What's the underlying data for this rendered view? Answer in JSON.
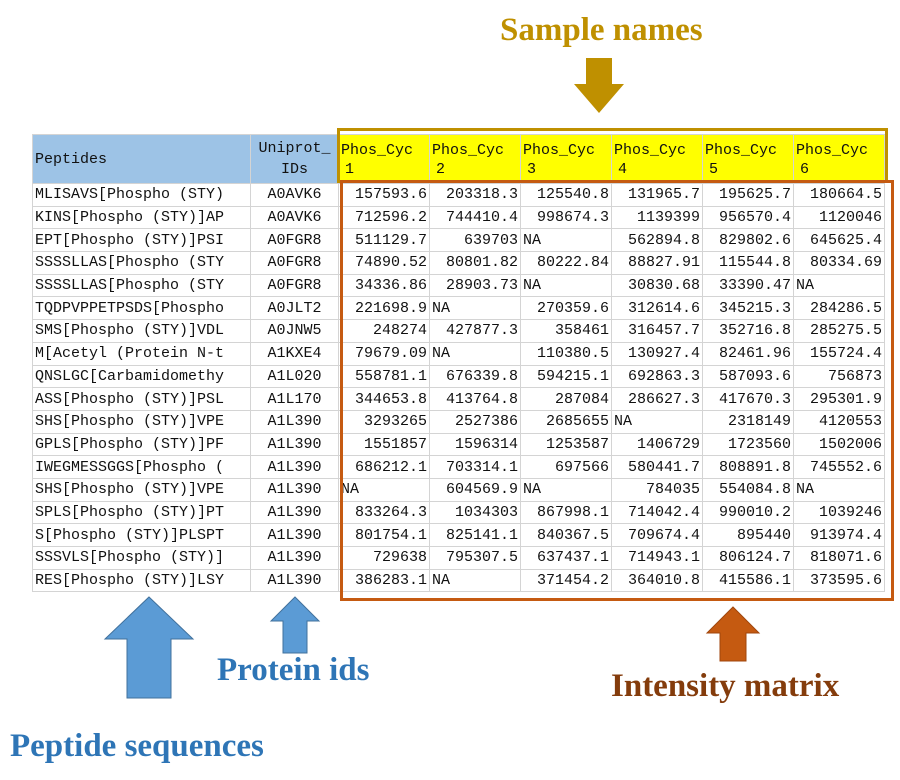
{
  "annotations": {
    "sample_names": "Sample names",
    "protein_ids": "Protein ids",
    "peptide_sequences": "Peptide sequences",
    "intensity_matrix": "Intensity matrix"
  },
  "colors": {
    "sample_names": "#bf9000",
    "protein_ids": "#2e75b6",
    "peptide_sequences": "#2e75b6",
    "intensity_matrix": "#c55a11",
    "header_blue": "#9dc3e6",
    "header_yellow": "#ffff00"
  },
  "icons": [
    "arrow-down-icon",
    "arrow-up-icon"
  ],
  "table": {
    "headers": {
      "peptides": "Peptides",
      "uniprot_line1": "Uniprot_",
      "uniprot_line2": "IDs",
      "samples": [
        {
          "line1": "Phos_Cyc",
          "line2": "1"
        },
        {
          "line1": "Phos_Cyc",
          "line2": "2"
        },
        {
          "line1": "Phos_Cyc",
          "line2": "3"
        },
        {
          "line1": "Phos_Cyc",
          "line2": "4"
        },
        {
          "line1": "Phos_Cyc",
          "line2": "5"
        },
        {
          "line1": "Phos_Cyc",
          "line2": "6"
        }
      ]
    },
    "rows": [
      {
        "peptide": "MLISAVS[Phospho (STY)",
        "id": "A0AVK6",
        "values": [
          "157593.6",
          "203318.3",
          "125540.8",
          "131965.7",
          "195625.7",
          "180664.5"
        ]
      },
      {
        "peptide": "KINS[Phospho (STY)]AP",
        "id": "A0AVK6",
        "values": [
          "712596.2",
          "744410.4",
          "998674.3",
          "1139399",
          "956570.4",
          "1120046"
        ]
      },
      {
        "peptide": "EPT[Phospho (STY)]PSI",
        "id": "A0FGR8",
        "values": [
          "511129.7",
          "639703",
          "NA",
          "562894.8",
          "829802.6",
          "645625.4"
        ]
      },
      {
        "peptide": "SSSSLLAS[Phospho (STY",
        "id": "A0FGR8",
        "values": [
          "74890.52",
          "80801.82",
          "80222.84",
          "88827.91",
          "115544.8",
          "80334.69"
        ]
      },
      {
        "peptide": "SSSSLLAS[Phospho (STY",
        "id": "A0FGR8",
        "values": [
          "34336.86",
          "28903.73",
          "NA",
          "30830.68",
          "33390.47",
          "NA"
        ]
      },
      {
        "peptide": "TQDPVPPETPSDS[Phospho",
        "id": "A0JLT2",
        "values": [
          "221698.9",
          "NA",
          "270359.6",
          "312614.6",
          "345215.3",
          "284286.5"
        ]
      },
      {
        "peptide": "SMS[Phospho (STY)]VDL",
        "id": "A0JNW5",
        "values": [
          "248274",
          "427877.3",
          "358461",
          "316457.7",
          "352716.8",
          "285275.5"
        ]
      },
      {
        "peptide": "M[Acetyl (Protein N-t",
        "id": "A1KXE4",
        "values": [
          "79679.09",
          "NA",
          "110380.5",
          "130927.4",
          "82461.96",
          "155724.4"
        ]
      },
      {
        "peptide": "QNSLGC[Carbamidomethy",
        "id": "A1L020",
        "values": [
          "558781.1",
          "676339.8",
          "594215.1",
          "692863.3",
          "587093.6",
          "756873"
        ]
      },
      {
        "peptide": "ASS[Phospho (STY)]PSL",
        "id": "A1L170",
        "values": [
          "344653.8",
          "413764.8",
          "287084",
          "286627.3",
          "417670.3",
          "295301.9"
        ]
      },
      {
        "peptide": "SHS[Phospho (STY)]VPE",
        "id": "A1L390",
        "values": [
          "3293265",
          "2527386",
          "2685655",
          "NA",
          "2318149",
          "4120553"
        ]
      },
      {
        "peptide": "GPLS[Phospho (STY)]PF",
        "id": "A1L390",
        "values": [
          "1551857",
          "1596314",
          "1253587",
          "1406729",
          "1723560",
          "1502006"
        ]
      },
      {
        "peptide": "IWEGMESSGGS[Phospho (",
        "id": "A1L390",
        "values": [
          "686212.1",
          "703314.1",
          "697566",
          "580441.7",
          "808891.8",
          "745552.6"
        ]
      },
      {
        "peptide": "SHS[Phospho (STY)]VPE",
        "id": "A1L390",
        "values": [
          "NA",
          "604569.9",
          "NA",
          "784035",
          "554084.8",
          "NA"
        ]
      },
      {
        "peptide": "SPLS[Phospho (STY)]PT",
        "id": "A1L390",
        "values": [
          "833264.3",
          "1034303",
          "867998.1",
          "714042.4",
          "990010.2",
          "1039246"
        ]
      },
      {
        "peptide": "S[Phospho (STY)]PLSPT",
        "id": "A1L390",
        "values": [
          "801754.1",
          "825141.1",
          "840367.5",
          "709674.4",
          "895440",
          "913974.4"
        ]
      },
      {
        "peptide": "SSSVLS[Phospho (STY)]",
        "id": "A1L390",
        "values": [
          "729638",
          "795307.5",
          "637437.1",
          "714943.1",
          "806124.7",
          "818071.6"
        ]
      },
      {
        "peptide": "RES[Phospho (STY)]LSY",
        "id": "A1L390",
        "values": [
          "386283.1",
          "NA",
          "371454.2",
          "364010.8",
          "415586.1",
          "373595.6"
        ]
      }
    ]
  }
}
